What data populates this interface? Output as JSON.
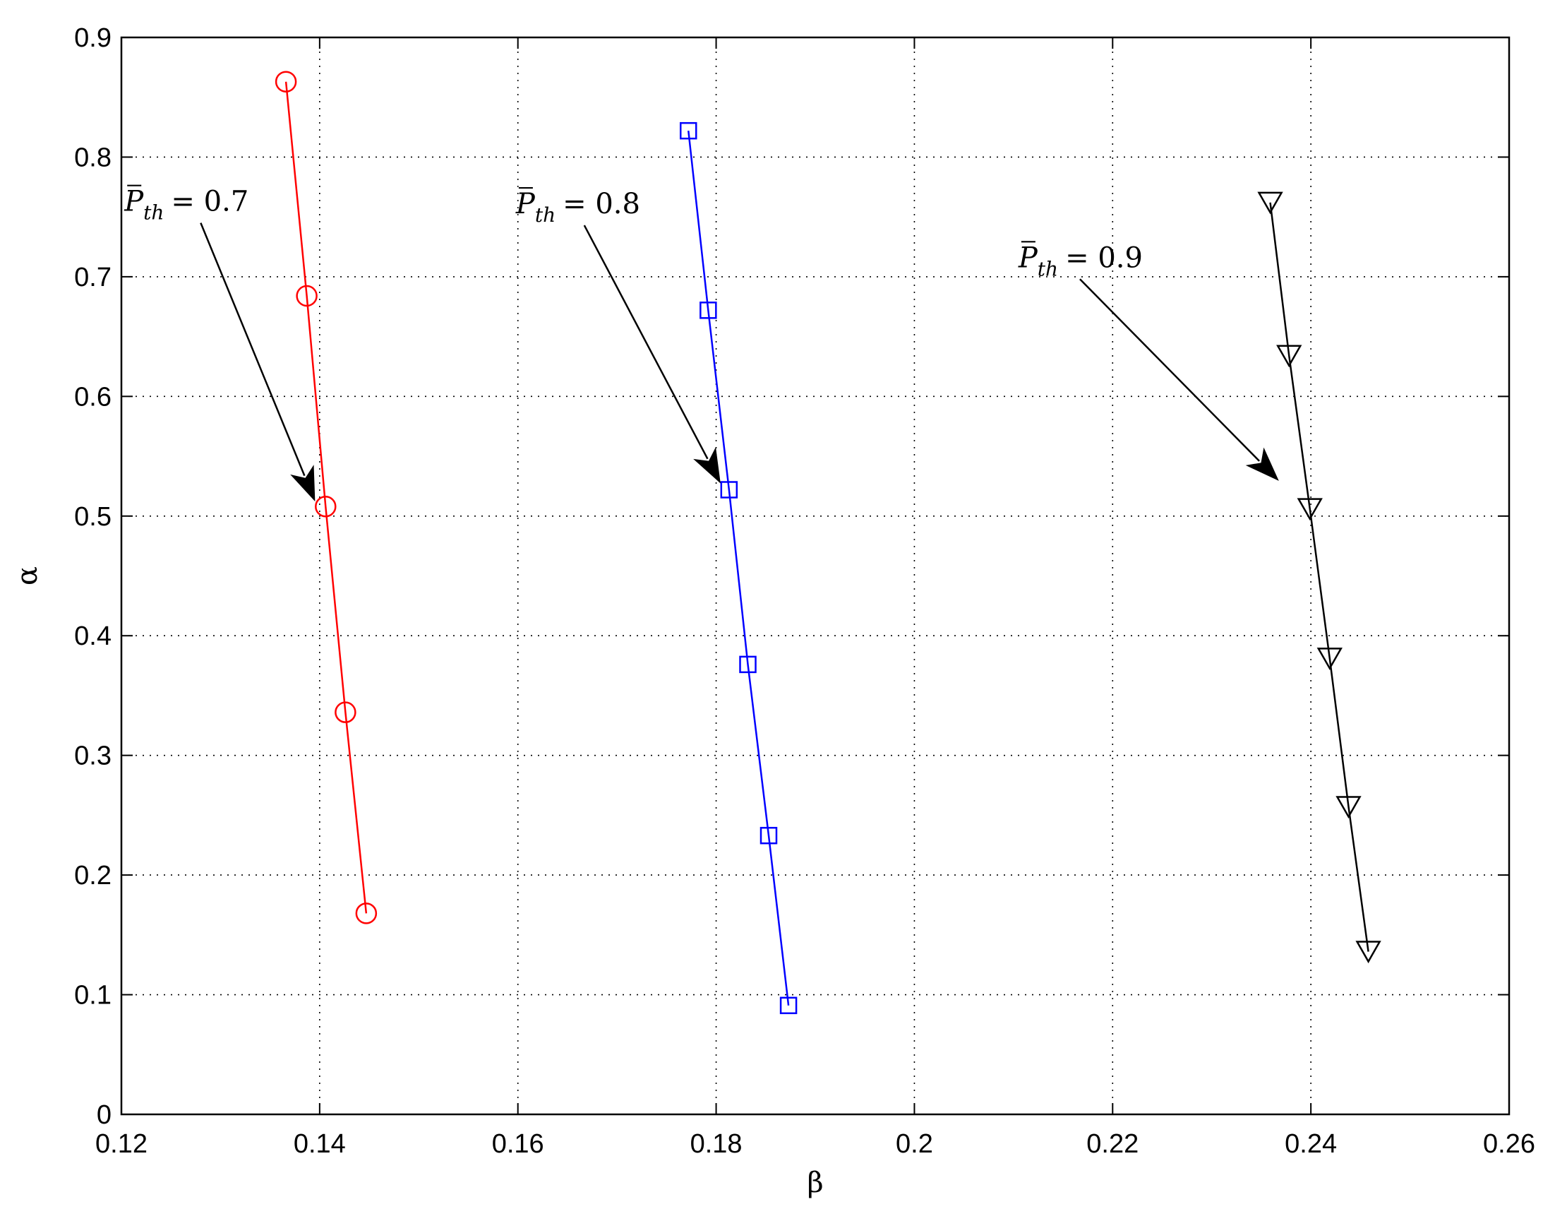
{
  "chart_data": {
    "type": "line",
    "title": "",
    "xlabel": "β",
    "ylabel": "α",
    "xlim": [
      0.12,
      0.26
    ],
    "ylim": [
      0,
      0.9
    ],
    "xticks": [
      0.12,
      0.14,
      0.16,
      0.18,
      0.2,
      0.22,
      0.24,
      0.26
    ],
    "xtick_labels": [
      "0.12",
      "0.14",
      "0.16",
      "0.18",
      "0.2",
      "0.22",
      "0.24",
      "0.26"
    ],
    "yticks": [
      0,
      0.1,
      0.2,
      0.3,
      0.4,
      0.5,
      0.6,
      0.7,
      0.8,
      0.9
    ],
    "ytick_labels": [
      "0",
      "0.1",
      "0.2",
      "0.3",
      "0.4",
      "0.5",
      "0.6",
      "0.7",
      "0.8",
      "0.9"
    ],
    "grid": true,
    "legend": "none",
    "series": [
      {
        "marker": "circle",
        "color": "#ff0000",
        "x": [
          0.1366,
          0.1387,
          0.1406,
          0.1426,
          0.1447
        ],
        "y": [
          0.863,
          0.684,
          0.508,
          0.336,
          0.168
        ]
      },
      {
        "marker": "square",
        "color": "#0000ff",
        "x": [
          0.1772,
          0.1792,
          0.1813,
          0.1832,
          0.1853,
          0.1873
        ],
        "y": [
          0.822,
          0.672,
          0.522,
          0.376,
          0.233,
          0.091
        ]
      },
      {
        "marker": "triangle-down",
        "color": "#000000",
        "x": [
          0.2359,
          0.2378,
          0.2399,
          0.2419,
          0.2438,
          0.2458
        ],
        "y": [
          0.762,
          0.634,
          0.506,
          0.381,
          0.257,
          0.136
        ]
      }
    ],
    "annotations": [
      {
        "symbol": "P",
        "subscript": "th",
        "value_text": "= 0.7",
        "text_x": 0.1203,
        "text_y": 0.755,
        "tail_x": 0.128,
        "tail_y": 0.745,
        "head_x": 0.1395,
        "head_y": 0.513
      },
      {
        "symbol": "P",
        "subscript": "th",
        "value_text": "= 0.8",
        "text_x": 0.1598,
        "text_y": 0.753,
        "tail_x": 0.1667,
        "tail_y": 0.743,
        "head_x": 0.1804,
        "head_y": 0.528
      },
      {
        "symbol": "P",
        "subscript": "th",
        "value_text": "= 0.9",
        "text_x": 0.2105,
        "text_y": 0.708,
        "tail_x": 0.2167,
        "tail_y": 0.698,
        "head_x": 0.2367,
        "head_y": 0.53
      }
    ]
  }
}
